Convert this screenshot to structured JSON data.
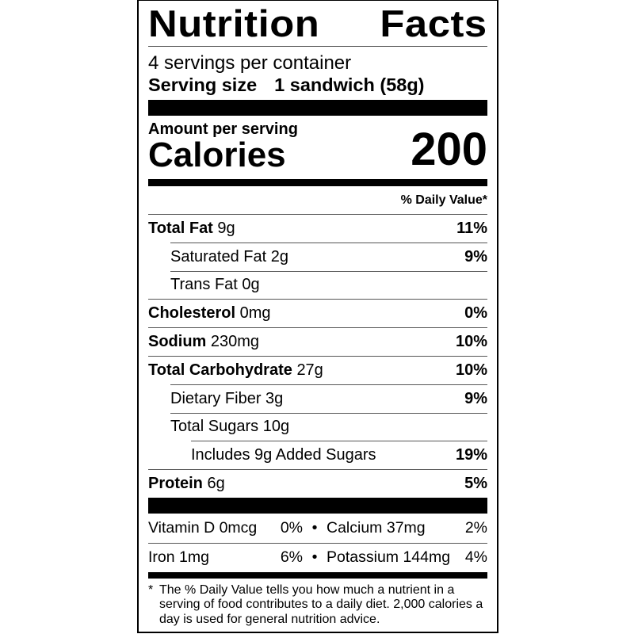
{
  "title_words": [
    "Nutrition",
    "Facts"
  ],
  "servings_per_container": "4 servings per container",
  "serving_size_label": "Serving size",
  "serving_size_value": "1 sandwich (58g)",
  "amount_per_serving": "Amount per serving",
  "calories_label": "Calories",
  "calories_value": "200",
  "daily_value_header": "% Daily Value*",
  "nutrients": [
    {
      "name": "Total Fat",
      "amount": "9g",
      "dv": "11%",
      "bold": true
    },
    {
      "name": "Saturated Fat",
      "amount": "2g",
      "dv": "9%",
      "indent": 1
    },
    {
      "name": "Trans Fat",
      "amount": "0g",
      "dv": "",
      "indent": 1
    },
    {
      "name": "Cholesterol",
      "amount": "0mg",
      "dv": "0%",
      "bold": true
    },
    {
      "name": "Sodium",
      "amount": "230mg",
      "dv": "10%",
      "bold": true
    },
    {
      "name": "Total Carbohydrate",
      "amount": "27g",
      "dv": "10%",
      "bold": true
    },
    {
      "name": "Dietary Fiber",
      "amount": "3g",
      "dv": "9%",
      "indent": 1
    },
    {
      "name": "Total Sugars",
      "amount": "10g",
      "dv": "",
      "indent": 1
    },
    {
      "name": "Includes 9g Added Sugars",
      "amount": "",
      "dv": "19%",
      "indent": 2
    },
    {
      "name": "Protein",
      "amount": "6g",
      "dv": "5%",
      "bold": true
    }
  ],
  "vitamins": [
    [
      {
        "name": "Vitamin D 0mcg",
        "dv": "0%"
      },
      {
        "name": "Calcium 37mg",
        "dv": "2%"
      }
    ],
    [
      {
        "name": "Iron 1mg",
        "dv": "6%"
      },
      {
        "name": "Potassium 144mg",
        "dv": "4%"
      }
    ]
  ],
  "bullet": "•",
  "footnote_mark": "*",
  "footnote": "The % Daily Value tells you how much a nutrient in a serving of food contributes to a daily diet. 2,000 calories a day is used for general nutrition advice."
}
